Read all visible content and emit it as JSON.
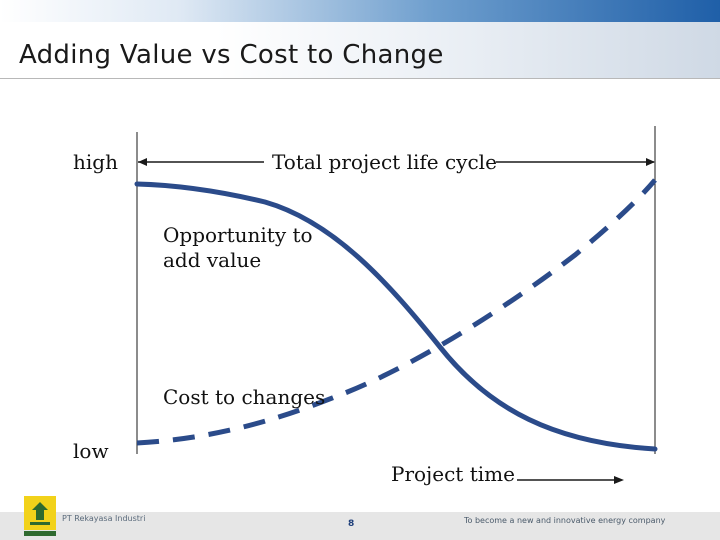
{
  "slide": {
    "title": "Adding Value vs Cost to Change"
  },
  "diagram": {
    "y_high_label": "high",
    "y_low_label": "low",
    "lifecycle_label": "Total project life cycle",
    "value_curve_label": "Opportunity to add value",
    "value_curve_label_line1": "Opportunity to",
    "value_curve_label_line2": "add value",
    "cost_curve_label": "Cost to changes",
    "x_label": "Project time",
    "colors": {
      "curve": "#2b4b8a",
      "lines": "#1a1a1a"
    }
  },
  "footer": {
    "company": "PT Rekayasa Industri",
    "page_number": "8",
    "tagline": "To become a new and innovative energy company",
    "logo_icon": "rekind-logo-icon",
    "colors": {
      "logo": "#f2d21a",
      "bar": "#e6e6e6"
    }
  }
}
